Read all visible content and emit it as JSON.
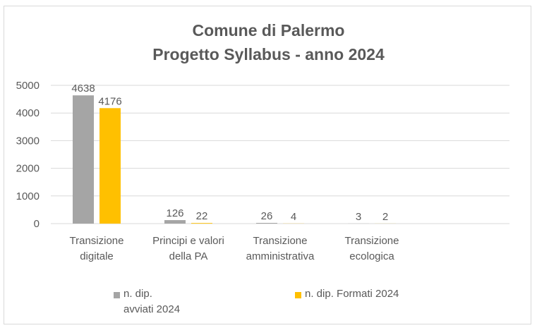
{
  "chart_data": {
    "type": "bar",
    "title_lines": [
      "Comune di Palermo",
      "Progetto Syllabus  - anno 2024"
    ],
    "categories": [
      [
        "Transizione",
        "digitale"
      ],
      [
        "Principi e valori",
        "della PA"
      ],
      [
        "Transizione",
        "amministrativa"
      ],
      [
        "Transizione",
        "ecologica"
      ]
    ],
    "series": [
      {
        "name": "n. dip. avviati 2024",
        "name_lines": [
          "n. dip.",
          "avviati 2024"
        ],
        "values": [
          4638,
          126,
          26,
          3
        ],
        "color": "#a5a5a5"
      },
      {
        "name": "n. dip. Formati 2024",
        "name_lines": [
          "n. dip. Formati 2024"
        ],
        "values": [
          4176,
          22,
          4,
          2
        ],
        "color": "#ffc000"
      }
    ],
    "yticks": [
      0,
      1000,
      2000,
      3000,
      4000,
      5000
    ],
    "ylim": [
      0,
      5000
    ],
    "grid": true,
    "legend_position": "bottom",
    "xlabel": "",
    "ylabel": ""
  }
}
